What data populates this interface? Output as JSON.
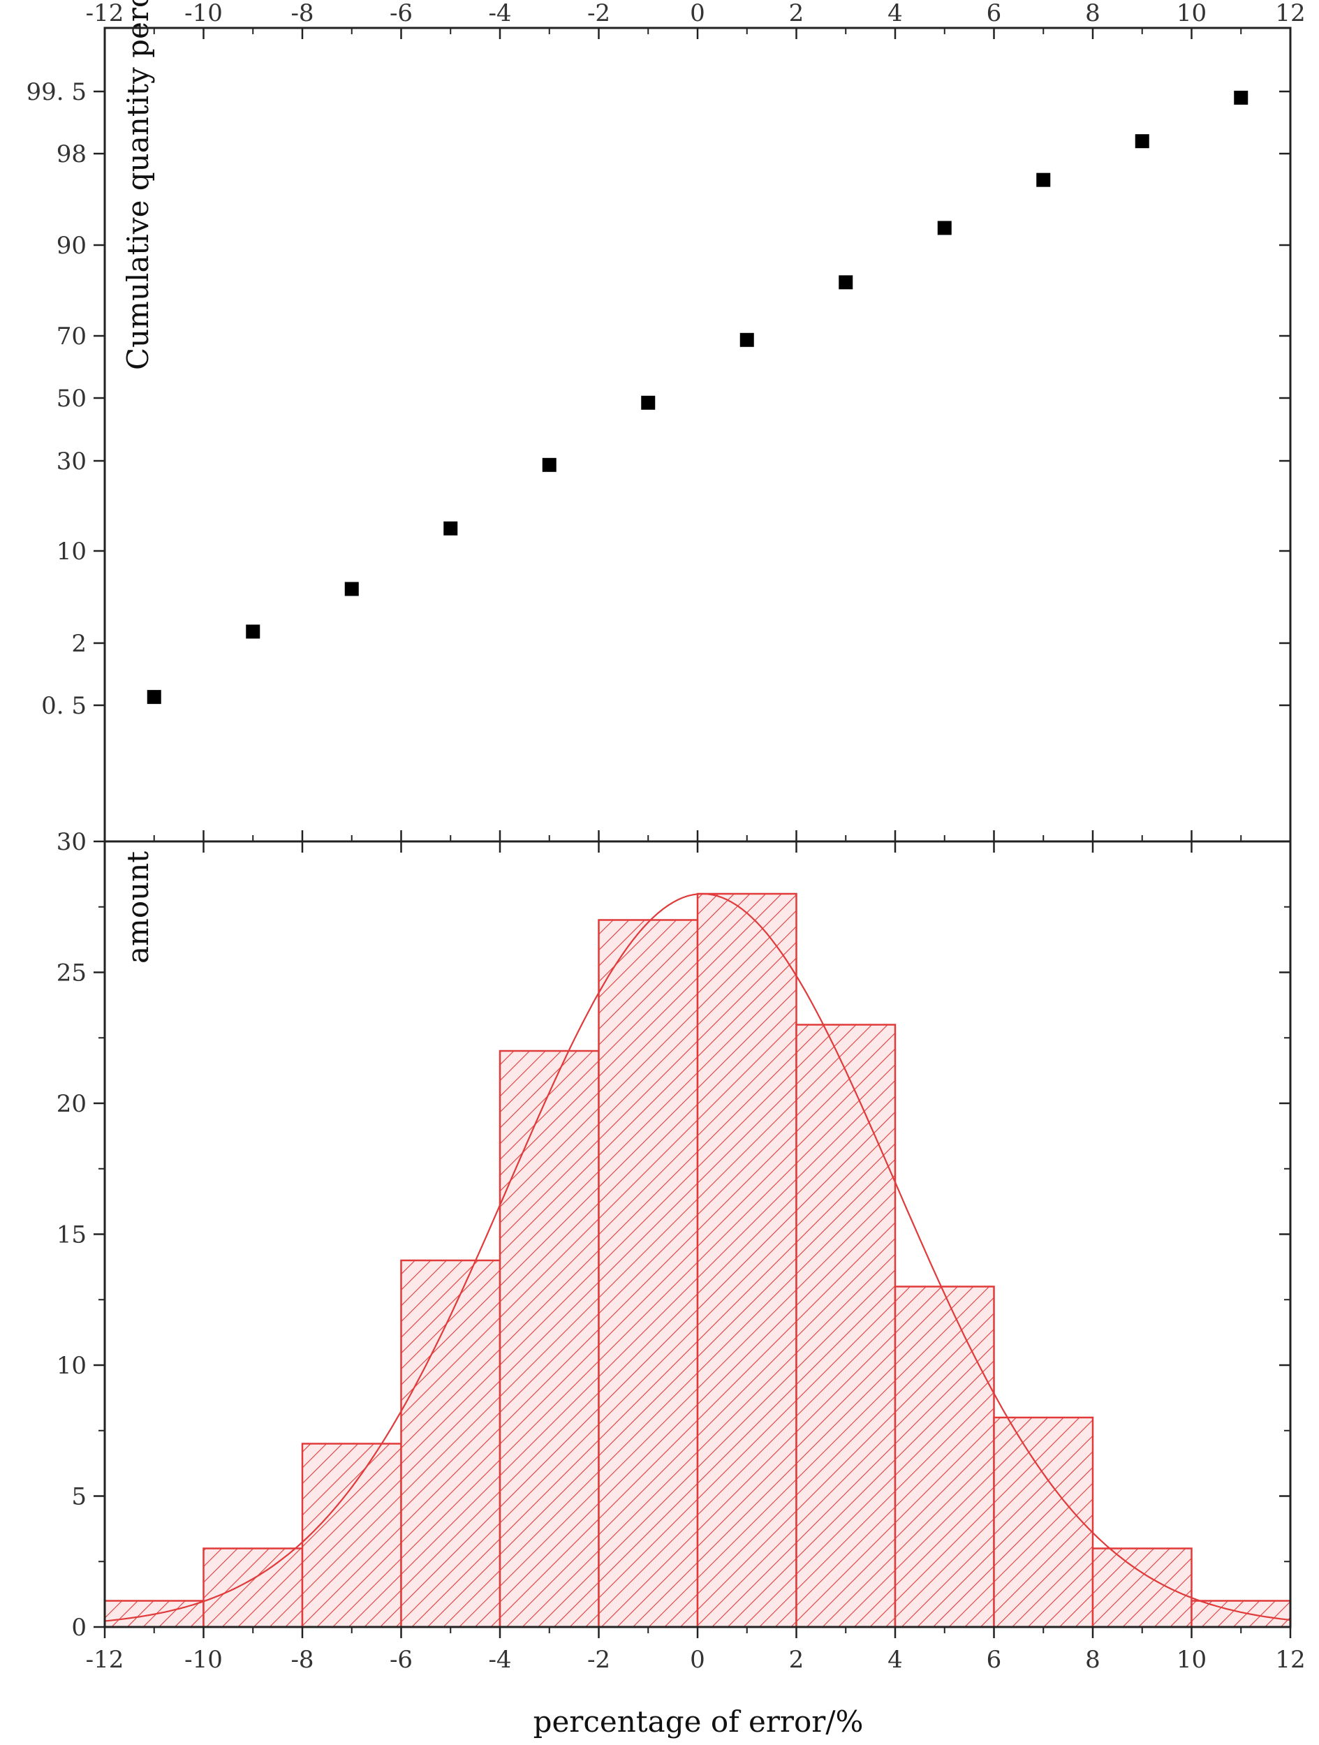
{
  "chart_data": [
    {
      "type": "scatter",
      "title": "",
      "ylabel": "Cumulative quantity percentage",
      "y_scale": "probability",
      "xlim": [
        -12,
        12
      ],
      "x_ticks": [
        -12,
        -10,
        -8,
        -6,
        -4,
        -2,
        0,
        2,
        4,
        6,
        8,
        10,
        12
      ],
      "x_tick_labels": [
        "-12",
        "-10",
        "-8",
        "-6",
        "-4",
        "-2",
        "0",
        "2",
        "4",
        "6",
        "8",
        "10",
        "12"
      ],
      "y_ticks": [
        0.5,
        2,
        10,
        30,
        50,
        70,
        90,
        98,
        99.5
      ],
      "y_tick_labels": [
        "0. 5",
        "2",
        "10",
        "30",
        "50",
        "70",
        "90",
        "98",
        "99. 5"
      ],
      "x": [
        -11,
        -9,
        -7,
        -5,
        -3,
        -1,
        1,
        3,
        5,
        7,
        9,
        11
      ],
      "y": [
        0.7,
        3.0,
        6.7,
        15.0,
        29.1,
        48.5,
        68.7,
        81.8,
        91.5,
        95.7,
        98.3,
        99.35
      ],
      "marker": "square",
      "marker_color": "#000000",
      "grid": false
    },
    {
      "type": "bar",
      "title": "",
      "xlabel": "percentage of error/%",
      "ylabel": "amount",
      "xlim": [
        -12,
        12
      ],
      "ylim": [
        0,
        30
      ],
      "x_ticks": [
        -12,
        -10,
        -8,
        -6,
        -4,
        -2,
        0,
        2,
        4,
        6,
        8,
        10,
        12
      ],
      "x_tick_labels": [
        "-12",
        "-10",
        "-8",
        "-6",
        "-4",
        "-2",
        "0",
        "2",
        "4",
        "6",
        "8",
        "10",
        "12"
      ],
      "y_ticks": [
        0,
        5,
        10,
        15,
        20,
        25,
        30
      ],
      "y_tick_labels": [
        "0",
        "5",
        "10",
        "15",
        "20",
        "25",
        "30"
      ],
      "bin_edges": [
        -12,
        -10,
        -8,
        -6,
        -4,
        -2,
        0,
        2,
        4,
        6,
        8,
        10,
        12
      ],
      "values": [
        1,
        3,
        7,
        14,
        22,
        27,
        28,
        23,
        13,
        8,
        3,
        1
      ],
      "fit_curve": {
        "type": "normal",
        "peak": 28,
        "mean": 0.1,
        "sd": 3.9
      },
      "bar_color": "#e03a3a",
      "fill": "hatched",
      "grid": false
    }
  ]
}
